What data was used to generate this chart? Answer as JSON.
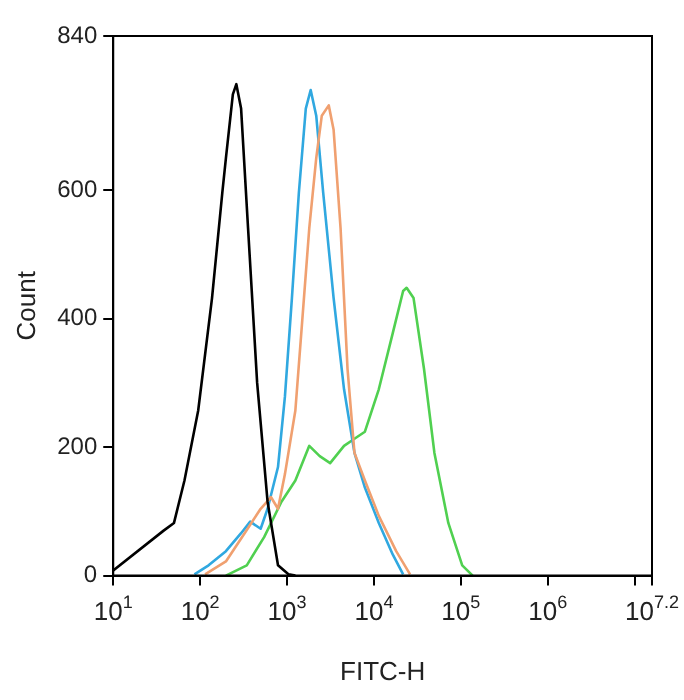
{
  "chart_data": {
    "type": "line",
    "xlabel": "FITC-H",
    "ylabel": "Count",
    "log": "x",
    "grid": false,
    "legend": false,
    "marker": "none",
    "line_style": "solid",
    "xlim": [
      10,
      15848932
    ],
    "ylim": [
      0,
      840
    ],
    "xticks": [
      {
        "value": 10,
        "label": "10$^{1}$"
      },
      {
        "value": 100,
        "label": "10$^{2}$"
      },
      {
        "value": 1000,
        "label": "10$^{3}$"
      },
      {
        "value": 10000,
        "label": "10$^{4}$"
      },
      {
        "value": 100000,
        "label": "10$^{5}$"
      },
      {
        "value": 1000000,
        "label": "10$^{6}$"
      },
      {
        "value": 10000000,
        "label": null
      },
      {
        "value": 15848932,
        "label": "10$^{7.2}$"
      }
    ],
    "yticks": [
      0,
      200,
      400,
      600,
      840
    ],
    "series": [
      {
        "color": "#000000",
        "x": [
          10,
          38,
          50,
          66,
          95,
          137,
          180,
          198,
          238,
          261,
          296,
          356,
          453,
          597,
          787,
          1038,
          1247
        ],
        "values": [
          8,
          70,
          82,
          148,
          257,
          432,
          596,
          650,
          749,
          765,
          727,
          541,
          300,
          115,
          16,
          2,
          0
        ]
      },
      {
        "color": "#f0a070",
        "x": [
          114,
          198,
          344,
          497,
          655,
          787,
          946,
          1247,
          1500,
          1803,
          2168,
          2512,
          3020,
          3436,
          4130,
          4966,
          5970,
          7870,
          11376,
          18030,
          26062
        ],
        "values": [
          2,
          22,
          71,
          104,
          122,
          104,
          158,
          257,
          399,
          541,
          650,
          716,
          732,
          694,
          541,
          322,
          191,
          148,
          93,
          38,
          2
        ]
      },
      {
        "color": "#30a8e0",
        "x": [
          86,
          125,
          198,
          296,
          377,
          497,
          597,
          787,
          946,
          1138,
          1368,
          1644,
          1871,
          2168,
          2606,
          3436,
          4529,
          5970,
          7870,
          11376,
          16444,
          21677
        ],
        "values": [
          2,
          16,
          38,
          66,
          84,
          73,
          104,
          169,
          279,
          432,
          596,
          727,
          756,
          716,
          596,
          432,
          290,
          191,
          137,
          82,
          33,
          2
        ]
      },
      {
        "color": "#50d050",
        "x": [
          198,
          344,
          545,
          863,
          1247,
          1803,
          2377,
          3133,
          4529,
          5970,
          7870,
          11376,
          16444,
          21677,
          23768,
          28576,
          37670,
          49659,
          71779,
          103753,
          136773
        ],
        "values": [
          0,
          16,
          60,
          115,
          148,
          202,
          186,
          175,
          202,
          213,
          224,
          290,
          377,
          443,
          448,
          432,
          322,
          191,
          82,
          16,
          0
        ]
      }
    ]
  }
}
